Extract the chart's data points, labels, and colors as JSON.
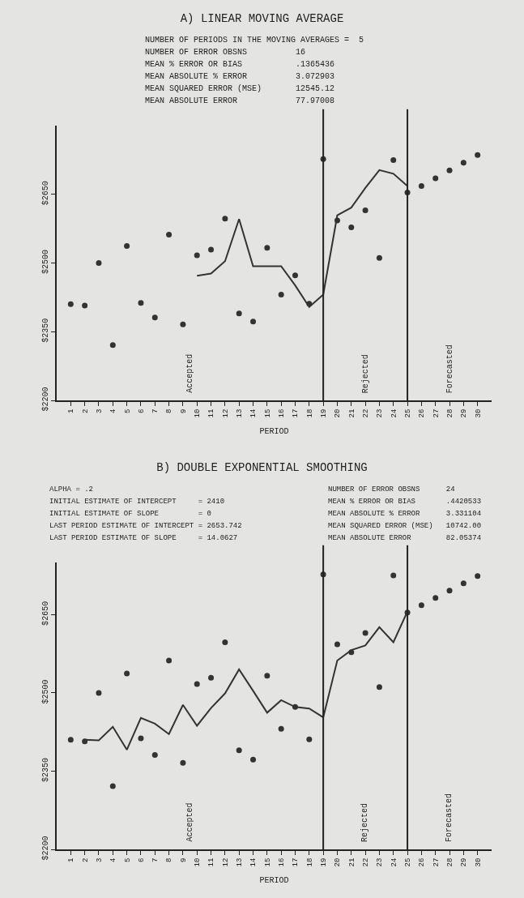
{
  "chart_data": [
    {
      "type": "line",
      "title": "A) LINEAR MOVING AVERAGE",
      "xlabel": "PERIOD",
      "annotations": [
        "NUMBER OF PERIODS IN THE MOVING AVERAGES =  5",
        "NUMBER OF ERROR OBSNS          16",
        "MEAN % ERROR OR BIAS           .1365436",
        "MEAN ABSOLUTE % ERROR          3.072903",
        "MEAN SQUARED ERROR (MSE)       12545.12",
        "MEAN ABSOLUTE ERROR            77.97008",
        "Accepted",
        "Rejected",
        "Forecasted"
      ],
      "series": [
        {
          "type": "scatter",
          "marker": "circle",
          "color": "#333333",
          "x": [
            1,
            2,
            3,
            4,
            5,
            6,
            7,
            8,
            9,
            10,
            11,
            12,
            13,
            14,
            15,
            16,
            17,
            18,
            19,
            20,
            21,
            22,
            23,
            24,
            25
          ],
          "values": [
            2410,
            2407,
            2500,
            2321,
            2537,
            2413,
            2381,
            2562,
            2366,
            2517,
            2529,
            2597,
            2390,
            2372,
            2533,
            2431,
            2473,
            2411,
            2727,
            2593,
            2578,
            2615,
            2511,
            2725,
            2654
          ]
        },
        {
          "type": "line",
          "line_style": "solid",
          "color": "#333333",
          "x": [
            10,
            11,
            12,
            13,
            14,
            15,
            16,
            17,
            18,
            19,
            20,
            21,
            22,
            23,
            24,
            25
          ],
          "values": [
            2472,
            2477,
            2504,
            2596,
            2493,
            2493,
            2493,
            2451,
            2404,
            2431,
            2604,
            2621,
            2664,
            2703,
            2695,
            2668
          ]
        },
        {
          "type": "scatter",
          "marker": "circle",
          "color": "#333333",
          "x": [
            26,
            27,
            28,
            29,
            30
          ],
          "values": [
            2668,
            2685,
            2702,
            2719,
            2736
          ]
        }
      ],
      "xlim": [
        0,
        31
      ],
      "xticks": [
        1,
        2,
        3,
        4,
        5,
        6,
        7,
        8,
        9,
        10,
        11,
        12,
        13,
        14,
        15,
        16,
        17,
        18,
        19,
        20,
        21,
        22,
        23,
        24,
        25,
        26,
        27,
        28,
        29,
        30
      ],
      "ylim": [
        2200,
        2800
      ],
      "yticks": [
        {
          "value": 2200,
          "label": "$2200"
        },
        {
          "value": 2350,
          "label": "$2350"
        },
        {
          "value": 2500,
          "label": "$2500"
        },
        {
          "value": 2650,
          "label": "$2650"
        }
      ],
      "ref_lines": [
        {
          "axis": "x",
          "value": 19,
          "color": "#222222"
        },
        {
          "axis": "x",
          "value": 25,
          "color": "#222222"
        }
      ],
      "grid": false
    },
    {
      "type": "line",
      "title": "B) DOUBLE EXPONENTIAL SMOOTHING",
      "xlabel": "PERIOD",
      "annotations": [
        "ALPHA = .2",
        "INITIAL ESTIMATE OF INTERCEPT     = 2410",
        "INITIAL ESTIMATE OF SLOPE         = 0",
        "LAST PERIOD ESTIMATE OF INTERCEPT = 2653.742",
        "LAST PERIOD ESTIMATE OF SLOPE     = 14.0627",
        "NUMBER OF ERROR OBSNS      24",
        "MEAN % ERROR OR BIAS       .4420533",
        "MEAN ABSOLUTE % ERROR      3.331104",
        "MEAN SQUARED ERROR (MSE)   10742.00",
        "MEAN ABSOLUTE ERROR        82.05374",
        "Accepted",
        "Rejected",
        "Forecasted"
      ],
      "series": [
        {
          "type": "scatter",
          "marker": "circle",
          "color": "#333333",
          "x": [
            1,
            2,
            3,
            4,
            5,
            6,
            7,
            8,
            9,
            10,
            11,
            12,
            13,
            14,
            15,
            16,
            17,
            18,
            19,
            20,
            21,
            22,
            23,
            24,
            25
          ],
          "values": [
            2410,
            2407,
            2500,
            2321,
            2537,
            2413,
            2381,
            2562,
            2366,
            2517,
            2529,
            2597,
            2390,
            2372,
            2533,
            2431,
            2473,
            2411,
            2727,
            2593,
            2578,
            2615,
            2511,
            2725,
            2654
          ]
        },
        {
          "type": "line",
          "line_style": "solid",
          "color": "#333333",
          "x": [
            2,
            3,
            4,
            5,
            6,
            7,
            8,
            9,
            10,
            11,
            12,
            13,
            14,
            15,
            16,
            17,
            18,
            19,
            20,
            21,
            22,
            23,
            24,
            25
          ],
          "values": [
            2410,
            2409,
            2435,
            2391,
            2452,
            2441,
            2421,
            2477,
            2437,
            2471,
            2499,
            2545,
            2504,
            2462,
            2486,
            2473,
            2470,
            2453,
            2562,
            2582,
            2591,
            2626,
            2597,
            2656
          ]
        },
        {
          "type": "scatter",
          "marker": "circle",
          "color": "#333333",
          "x": [
            26,
            27,
            28,
            29,
            30
          ],
          "values": [
            2668,
            2682,
            2696,
            2710,
            2724
          ]
        }
      ],
      "xlim": [
        0,
        31
      ],
      "xticks": [
        1,
        2,
        3,
        4,
        5,
        6,
        7,
        8,
        9,
        10,
        11,
        12,
        13,
        14,
        15,
        16,
        17,
        18,
        19,
        20,
        21,
        22,
        23,
        24,
        25,
        26,
        27,
        28,
        29,
        30
      ],
      "ylim": [
        2200,
        2750
      ],
      "yticks": [
        {
          "value": 2200,
          "label": "$2200"
        },
        {
          "value": 2350,
          "label": "$2350"
        },
        {
          "value": 2500,
          "label": "$2500"
        },
        {
          "value": 2650,
          "label": "$2650"
        }
      ],
      "ref_lines": [
        {
          "axis": "x",
          "value": 19,
          "color": "#222222"
        },
        {
          "axis": "x",
          "value": 25,
          "color": "#222222"
        }
      ],
      "grid": false
    }
  ]
}
